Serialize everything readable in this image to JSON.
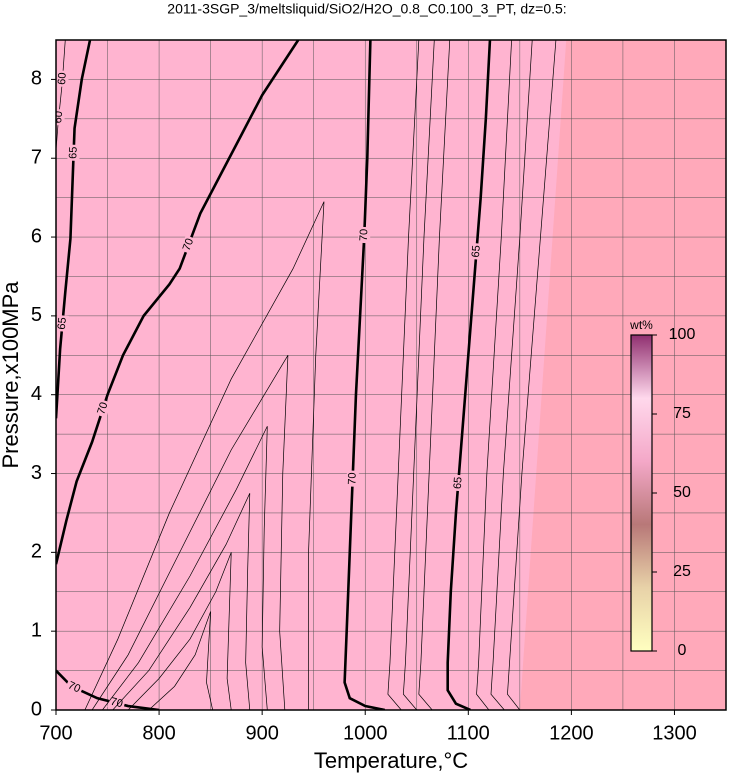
{
  "chart_data": {
    "type": "contour",
    "title": "2011-3SGP_3/meltsliquid/SiO2/H2O_0.8_C0.100_3_PT, dz=0.5:",
    "xlabel": "Temperature,°C",
    "ylabel": "Pressure,x100MPa",
    "xlim": [
      700,
      1350
    ],
    "ylim": [
      0,
      8.5
    ],
    "xticks": [
      700,
      800,
      900,
      1000,
      1100,
      1200,
      1300
    ],
    "yticks": [
      0,
      1,
      2,
      3,
      4,
      5,
      6,
      7,
      8
    ],
    "xgrid": [
      750,
      800,
      850,
      900,
      950,
      1000,
      1050,
      1100,
      1150,
      1200,
      1250,
      1300
    ],
    "ygrid": [
      0.5,
      1,
      1.5,
      2,
      2.5,
      3,
      3.5,
      4,
      4.5,
      5,
      5.5,
      6,
      6.5,
      7,
      7.5,
      8
    ],
    "background": "#ffa9ba",
    "regions": [
      {
        "color": "#ffb4d0",
        "x": [
          700,
          1150,
          1195,
          700
        ],
        "y": [
          0,
          0,
          8.5,
          8.5
        ]
      }
    ],
    "contours": [
      {
        "level": 70,
        "bold": true,
        "x": [
          700,
          710,
          720,
          735,
          750,
          765,
          785,
          810,
          820,
          840,
          860,
          880,
          900,
          920,
          935
        ],
        "y": [
          1.85,
          2.4,
          2.9,
          3.4,
          4.0,
          4.5,
          5.0,
          5.4,
          5.6,
          6.3,
          6.8,
          7.3,
          7.8,
          8.2,
          8.5
        ]
      },
      {
        "level": 70,
        "bold": true,
        "x": [
          1019,
          1000,
          985,
          980,
          982,
          985,
          988,
          991,
          995,
          999,
          1002,
          1005
        ],
        "y": [
          0,
          0.05,
          0.15,
          0.35,
          1,
          2,
          3,
          4,
          5,
          6,
          7,
          8.5
        ]
      },
      {
        "level": 65,
        "bold": true,
        "x": [
          1102,
          1088,
          1080,
          1080,
          1083,
          1088,
          1094,
          1100,
          1106,
          1112,
          1117,
          1121
        ],
        "y": [
          0,
          0.08,
          0.25,
          0.6,
          1.5,
          2.5,
          3.5,
          4.5,
          5.5,
          6.5,
          7.5,
          8.5
        ]
      },
      {
        "level": 65,
        "bold": true,
        "x": [
          700,
          704,
          709,
          714,
          718,
          725,
          733
        ],
        "y": [
          3.7,
          4.58,
          5.3,
          5.98,
          7.38,
          8.0,
          8.5
        ]
      },
      {
        "level": 60,
        "bold": false,
        "x": [
          700,
          702,
          706,
          709
        ],
        "y": [
          7.1,
          7.44,
          7.95,
          8.5
        ]
      },
      {
        "level": 70,
        "bold": true,
        "x": [
          700,
          715,
          740,
          770,
          800
        ],
        "y": [
          0.5,
          0.3,
          0.15,
          0.05,
          0
        ]
      },
      {
        "bold": false,
        "x": [
          790,
          815,
          835,
          850,
          848,
          846,
          852
        ],
        "y": [
          0,
          0.3,
          0.7,
          1.25,
          0.8,
          0.35,
          0
        ]
      },
      {
        "bold": false,
        "x": [
          770,
          800,
          830,
          855,
          870,
          868,
          866,
          870
        ],
        "y": [
          0,
          0.4,
          0.9,
          1.5,
          2.0,
          1.2,
          0.4,
          0
        ]
      },
      {
        "bold": false,
        "x": [
          755,
          790,
          830,
          865,
          888,
          886,
          884,
          888
        ],
        "y": [
          0,
          0.5,
          1.3,
          2.1,
          2.75,
          1.8,
          0.6,
          0
        ]
      },
      {
        "bold": false,
        "x": [
          745,
          780,
          830,
          875,
          905,
          902,
          900,
          905
        ],
        "y": [
          0,
          0.6,
          1.7,
          2.8,
          3.6,
          2.3,
          0.8,
          0
        ]
      },
      {
        "bold": false,
        "x": [
          735,
          770,
          820,
          870,
          925,
          920,
          917,
          922
        ],
        "y": [
          0,
          0.7,
          2.0,
          3.3,
          4.5,
          3.0,
          1.0,
          0
        ]
      },
      {
        "bold": false,
        "x": [
          728,
          760,
          810,
          870,
          930,
          960,
          952,
          945,
          945
        ],
        "y": [
          0,
          0.9,
          2.5,
          4.2,
          5.6,
          6.45,
          4.5,
          2,
          0
        ]
      },
      {
        "bold": false,
        "x": [
          1035,
          1022,
          1024,
          1032,
          1042,
          1052
        ],
        "y": [
          0,
          0.2,
          0.6,
          3,
          6,
          8.5
        ]
      },
      {
        "bold": false,
        "x": [
          1050,
          1037,
          1039,
          1047,
          1057,
          1067
        ],
        "y": [
          0,
          0.2,
          0.6,
          3,
          6,
          8.5
        ]
      },
      {
        "bold": false,
        "x": [
          1065,
          1052,
          1054,
          1062,
          1072,
          1082
        ],
        "y": [
          0,
          0.2,
          0.6,
          3,
          6,
          8.5
        ]
      },
      {
        "bold": false,
        "x": [
          1120,
          1108,
          1110,
          1118,
          1132,
          1142
        ],
        "y": [
          0,
          0.2,
          0.6,
          3,
          6,
          8.5
        ]
      },
      {
        "bold": false,
        "x": [
          1135,
          1122,
          1124,
          1134,
          1150,
          1162
        ],
        "y": [
          0,
          0.2,
          0.6,
          3,
          6,
          8.5
        ]
      },
      {
        "bold": false,
        "x": [
          1150,
          1138,
          1140,
          1152,
          1170,
          1185
        ],
        "y": [
          0,
          0.2,
          0.6,
          3,
          6,
          8.5
        ]
      }
    ],
    "colorbar": {
      "label": "wt%",
      "lim": [
        0,
        100
      ],
      "ticks": [
        0,
        25,
        50,
        75,
        100
      ],
      "colors": [
        "#ffffc0",
        "#e8d2a8",
        "#b87878",
        "#f4a8c8",
        "#ffd8ec",
        "#903070"
      ]
    }
  }
}
